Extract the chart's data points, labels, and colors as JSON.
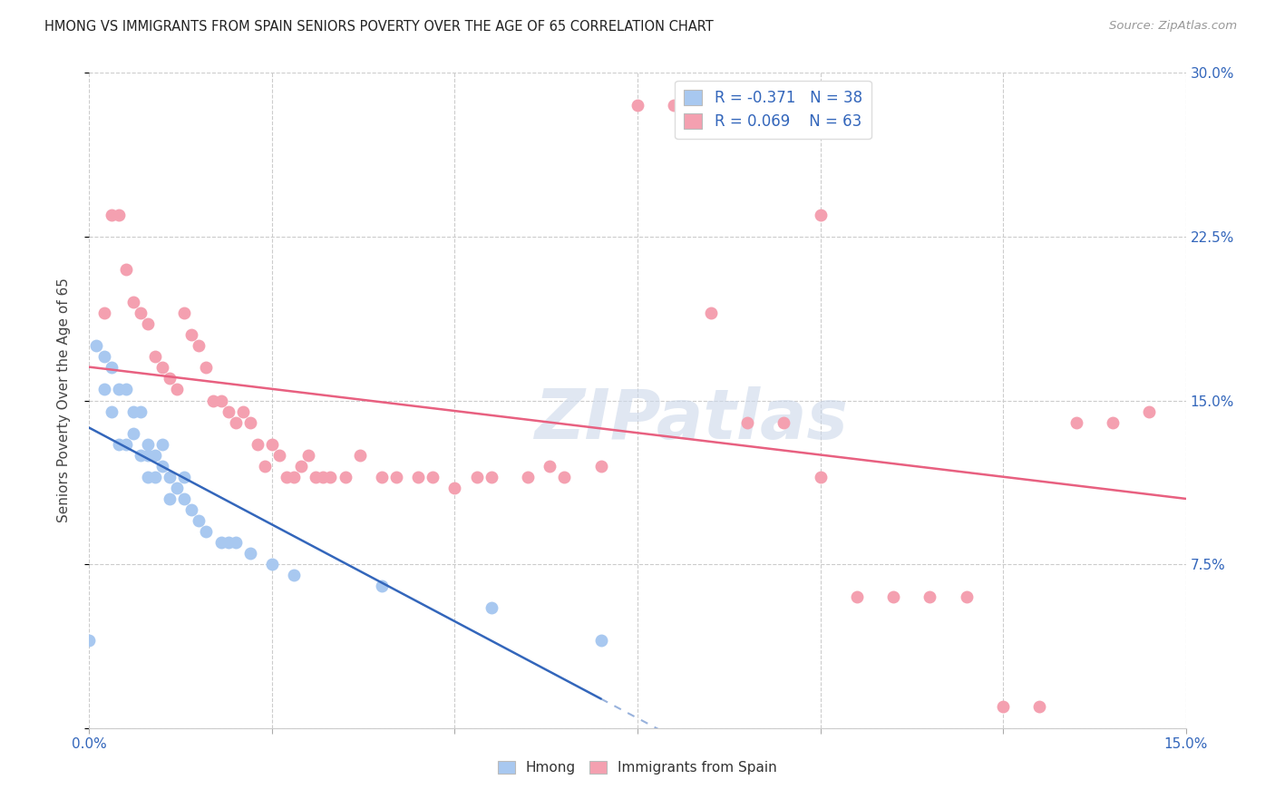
{
  "title": "HMONG VS IMMIGRANTS FROM SPAIN SENIORS POVERTY OVER THE AGE OF 65 CORRELATION CHART",
  "source": "Source: ZipAtlas.com",
  "ylabel": "Seniors Poverty Over the Age of 65",
  "xlim": [
    0.0,
    0.15
  ],
  "ylim": [
    0.0,
    0.3
  ],
  "xticks": [
    0.0,
    0.025,
    0.05,
    0.075,
    0.1,
    0.125,
    0.15
  ],
  "yticks": [
    0.0,
    0.075,
    0.15,
    0.225,
    0.3
  ],
  "ytick_right_labels": [
    "",
    "7.5%",
    "15.0%",
    "22.5%",
    "30.0%"
  ],
  "hmong_R": -0.371,
  "hmong_N": 38,
  "spain_R": 0.069,
  "spain_N": 63,
  "hmong_color": "#a8c8f0",
  "spain_color": "#f4a0b0",
  "hmong_line_color": "#3366bb",
  "spain_line_color": "#e86080",
  "legend_label_1": "Hmong",
  "legend_label_2": "Immigrants from Spain",
  "hmong_x": [
    0.0,
    0.001,
    0.002,
    0.002,
    0.003,
    0.003,
    0.004,
    0.004,
    0.005,
    0.005,
    0.006,
    0.006,
    0.007,
    0.007,
    0.008,
    0.008,
    0.008,
    0.009,
    0.009,
    0.01,
    0.01,
    0.011,
    0.011,
    0.012,
    0.013,
    0.013,
    0.014,
    0.015,
    0.016,
    0.018,
    0.019,
    0.02,
    0.022,
    0.025,
    0.028,
    0.04,
    0.055,
    0.07
  ],
  "hmong_y": [
    0.04,
    0.175,
    0.17,
    0.155,
    0.145,
    0.165,
    0.155,
    0.13,
    0.13,
    0.155,
    0.145,
    0.135,
    0.125,
    0.145,
    0.125,
    0.115,
    0.13,
    0.115,
    0.125,
    0.12,
    0.13,
    0.115,
    0.105,
    0.11,
    0.105,
    0.115,
    0.1,
    0.095,
    0.09,
    0.085,
    0.085,
    0.085,
    0.08,
    0.075,
    0.07,
    0.065,
    0.055,
    0.04
  ],
  "spain_x": [
    0.002,
    0.003,
    0.004,
    0.005,
    0.006,
    0.007,
    0.008,
    0.009,
    0.01,
    0.011,
    0.012,
    0.013,
    0.014,
    0.015,
    0.016,
    0.017,
    0.018,
    0.019,
    0.02,
    0.021,
    0.022,
    0.023,
    0.024,
    0.025,
    0.026,
    0.027,
    0.028,
    0.029,
    0.03,
    0.031,
    0.032,
    0.033,
    0.035,
    0.037,
    0.04,
    0.042,
    0.045,
    0.047,
    0.05,
    0.053,
    0.055,
    0.06,
    0.063,
    0.065,
    0.07,
    0.075,
    0.08,
    0.085,
    0.09,
    0.095,
    0.1,
    0.105,
    0.11,
    0.115,
    0.12,
    0.125,
    0.13,
    0.135,
    0.14,
    0.145,
    0.085,
    0.09,
    0.1
  ],
  "spain_y": [
    0.19,
    0.235,
    0.235,
    0.21,
    0.195,
    0.19,
    0.185,
    0.17,
    0.165,
    0.16,
    0.155,
    0.19,
    0.18,
    0.175,
    0.165,
    0.15,
    0.15,
    0.145,
    0.14,
    0.145,
    0.14,
    0.13,
    0.12,
    0.13,
    0.125,
    0.115,
    0.115,
    0.12,
    0.125,
    0.115,
    0.115,
    0.115,
    0.115,
    0.125,
    0.115,
    0.115,
    0.115,
    0.115,
    0.11,
    0.115,
    0.115,
    0.115,
    0.12,
    0.115,
    0.12,
    0.285,
    0.285,
    0.19,
    0.14,
    0.14,
    0.115,
    0.06,
    0.06,
    0.06,
    0.06,
    0.01,
    0.01,
    0.14,
    0.14,
    0.145,
    0.285,
    0.285,
    0.235
  ]
}
